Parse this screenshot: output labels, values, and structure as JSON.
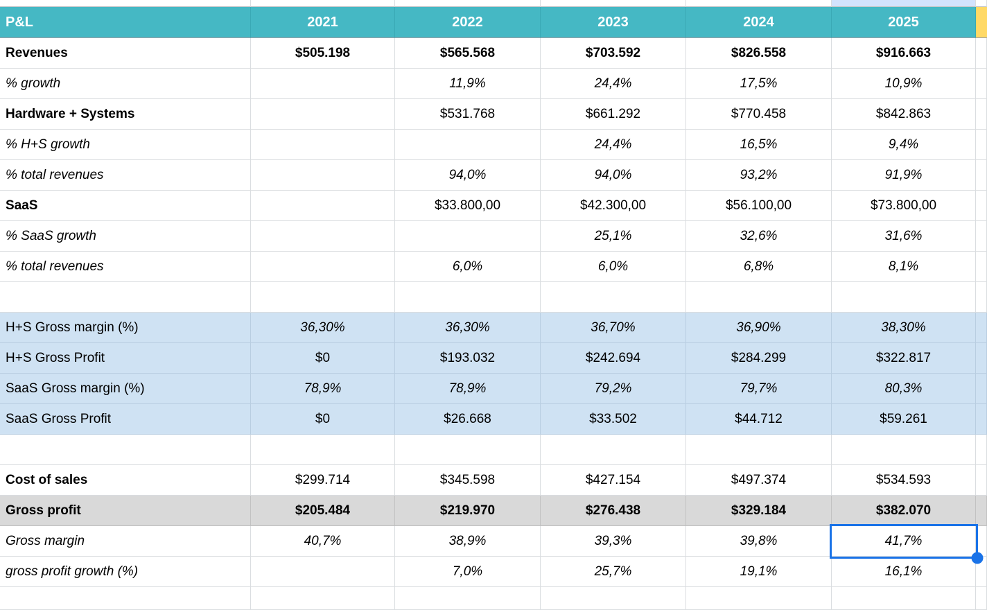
{
  "colors": {
    "header_bg": "#45b8c4",
    "header_text": "#ffffff",
    "highlight_column": "#d3e3fd",
    "extra_column": "#ffd966",
    "band_blue": "#cfe2f3",
    "band_gray": "#d9d9d9",
    "selection": "#1a73e8"
  },
  "table": {
    "corner_label": "P&L",
    "years": [
      "2021",
      "2022",
      "2023",
      "2024",
      "2025"
    ],
    "rows": [
      {
        "label": "Revenues",
        "label_bold": true,
        "values_bold": true,
        "band": "none",
        "values": [
          "$505.198",
          "$565.568",
          "$703.592",
          "$826.558",
          "$916.663"
        ]
      },
      {
        "label": "% growth",
        "label_italic": true,
        "values_italic": true,
        "band": "none",
        "values": [
          "",
          "11,9%",
          "24,4%",
          "17,5%",
          "10,9%"
        ]
      },
      {
        "label": "Hardware + Systems",
        "label_bold": true,
        "band": "none",
        "values": [
          "",
          "$531.768",
          "$661.292",
          "$770.458",
          "$842.863"
        ]
      },
      {
        "label": "% H+S growth",
        "label_italic": true,
        "values_italic": true,
        "band": "none",
        "values": [
          "",
          "",
          "24,4%",
          "16,5%",
          "9,4%"
        ]
      },
      {
        "label": "% total revenues",
        "label_italic": true,
        "values_italic": true,
        "band": "none",
        "values": [
          "",
          "94,0%",
          "94,0%",
          "93,2%",
          "91,9%"
        ]
      },
      {
        "label": "SaaS",
        "label_bold": true,
        "band": "none",
        "values": [
          "",
          "$33.800,00",
          "$42.300,00",
          "$56.100,00",
          "$73.800,00"
        ]
      },
      {
        "label": "% SaaS growth",
        "label_italic": true,
        "values_italic": true,
        "band": "none",
        "values": [
          "",
          "",
          "25,1%",
          "32,6%",
          "31,6%"
        ]
      },
      {
        "label": "% total revenues",
        "label_italic": true,
        "values_italic": true,
        "band": "none",
        "values": [
          "",
          "6,0%",
          "6,0%",
          "6,8%",
          "8,1%"
        ]
      },
      {
        "label": "",
        "blank": true,
        "band": "none",
        "values": [
          "",
          "",
          "",
          "",
          ""
        ]
      },
      {
        "label": "H+S Gross margin (%)",
        "values_italic": true,
        "band": "blue",
        "values": [
          "36,30%",
          "36,30%",
          "36,70%",
          "36,90%",
          "38,30%"
        ]
      },
      {
        "label": "H+S Gross Profit",
        "band": "blue",
        "values": [
          "$0",
          "$193.032",
          "$242.694",
          "$284.299",
          "$322.817"
        ]
      },
      {
        "label": "SaaS Gross margin (%)",
        "values_italic": true,
        "band": "blue",
        "values": [
          "78,9%",
          "78,9%",
          "79,2%",
          "79,7%",
          "80,3%"
        ]
      },
      {
        "label": "SaaS Gross Profit",
        "band": "blue",
        "values": [
          "$0",
          "$26.668",
          "$33.502",
          "$44.712",
          "$59.261"
        ]
      },
      {
        "label": "",
        "blank": true,
        "band": "none",
        "values": [
          "",
          "",
          "",
          "",
          ""
        ]
      },
      {
        "label": "Cost of sales",
        "label_bold": true,
        "band": "none",
        "values": [
          "$299.714",
          "$345.598",
          "$427.154",
          "$497.374",
          "$534.593"
        ]
      },
      {
        "label": "Gross profit",
        "label_bold": true,
        "values_bold": true,
        "band": "gray",
        "values": [
          "$205.484",
          "$219.970",
          "$276.438",
          "$329.184",
          "$382.070"
        ]
      },
      {
        "label": "Gross margin",
        "label_italic": true,
        "values_italic": true,
        "band": "none",
        "values": [
          "40,7%",
          "38,9%",
          "39,3%",
          "39,8%",
          "41,7%"
        ]
      },
      {
        "label": "gross profit growth (%)",
        "label_italic": true,
        "values_italic": true,
        "band": "none",
        "values": [
          "",
          "7,0%",
          "25,7%",
          "19,1%",
          "16,1%"
        ]
      },
      {
        "label": "",
        "blank": true,
        "band": "none",
        "values": [
          "",
          "",
          "",
          "",
          ""
        ]
      }
    ]
  },
  "selection": {
    "row_label": "Gross margin",
    "year": "2025",
    "value": "41,7%"
  }
}
